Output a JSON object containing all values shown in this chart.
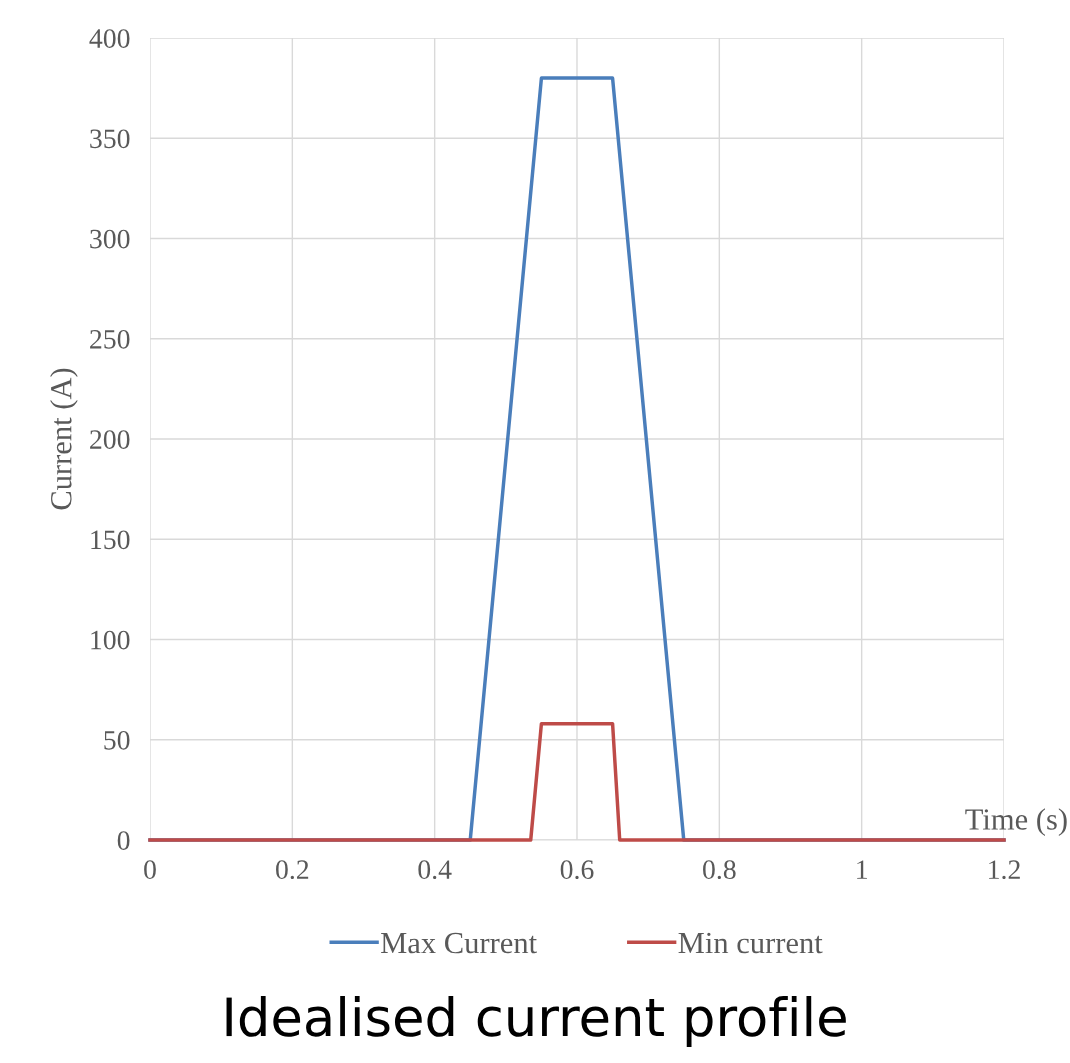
{
  "chart_data": {
    "type": "line",
    "title": "Idealised current profile",
    "xlabel": "Time (s)",
    "ylabel": "Current (A)",
    "series": [
      {
        "name": "Max Current",
        "color": "#4a7ebb",
        "x": [
          0,
          0.45,
          0.55,
          0.65,
          0.75,
          1.2
        ],
        "values": [
          0,
          0,
          380,
          380,
          0,
          0
        ]
      },
      {
        "name": "Min current",
        "color": "#be4b48",
        "x": [
          0,
          0.535,
          0.55,
          0.65,
          0.66,
          1.2
        ],
        "values": [
          0,
          0,
          58,
          58,
          0,
          0
        ]
      }
    ],
    "xlim": [
      0,
      1.2
    ],
    "xticks": [
      0,
      0.2,
      0.4,
      0.6,
      0.8,
      1,
      1.2
    ],
    "ylim": [
      0,
      400
    ],
    "yticks": [
      0,
      50,
      100,
      150,
      200,
      250,
      300,
      350,
      400
    ],
    "grid": true,
    "legend": "bottom",
    "marker": "none",
    "line_style": "solid"
  }
}
